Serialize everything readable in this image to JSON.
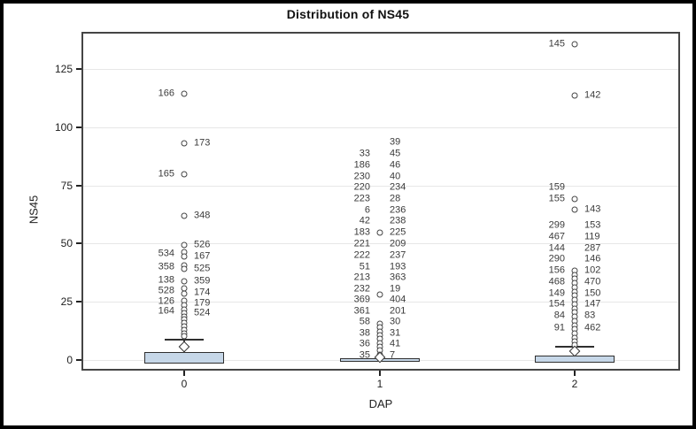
{
  "title": "Distribution of NS45",
  "x_axis": {
    "label": "DAP",
    "tick_labels": [
      "0",
      "1",
      "2"
    ]
  },
  "y_axis": {
    "label": "NS45",
    "tick_labels": [
      "0",
      "25",
      "50",
      "75",
      "100",
      "125"
    ]
  },
  "colors": {
    "outer_border": "#000000",
    "frame": "#454545",
    "grid": "#e7e7e7",
    "box_fill": "#c6d7e8",
    "box_border": "#2f2f2f",
    "marker": "#444444",
    "tick_text": "#222222",
    "label_text": "#3b3b3b"
  },
  "chart_data": {
    "type": "boxplot",
    "title": "Distribution of NS45",
    "xlabel": "DAP",
    "ylabel": "NS45",
    "ylim": [
      -4.5,
      141
    ],
    "yticks": [
      0,
      25,
      50,
      75,
      100,
      125
    ],
    "categories": [
      "0",
      "1",
      "2"
    ],
    "grid": "horizontal",
    "legend": "none",
    "groups": [
      {
        "category": "0",
        "box": {
          "q1": -1.5,
          "q3": 3.5
        },
        "whisker_top": 8.7,
        "mean": 5.7,
        "circles": [
          114.4,
          93.1,
          79.8,
          61.9,
          49.4,
          46.5,
          44.6,
          40.5,
          39.3,
          34.0,
          30.6,
          28.6,
          25.6,
          23.6,
          21.6,
          20.2,
          18.8,
          17.3,
          15.8,
          14.3,
          12.8,
          11.4,
          10.2
        ],
        "labels": [
          {
            "text": "166",
            "side": "left",
            "v": 114.4
          },
          {
            "text": "173",
            "side": "right",
            "v": 93.1
          },
          {
            "text": "165",
            "side": "left",
            "v": 79.8
          },
          {
            "text": "348",
            "side": "right",
            "v": 61.9
          },
          {
            "text": "526",
            "side": "right",
            "v": 49.4
          },
          {
            "text": "534",
            "side": "left",
            "v": 45.6
          },
          {
            "text": "167",
            "side": "right",
            "v": 44.6
          },
          {
            "text": "358",
            "side": "left",
            "v": 39.9
          },
          {
            "text": "525",
            "side": "right",
            "v": 39.3
          },
          {
            "text": "138",
            "side": "left",
            "v": 34.2
          },
          {
            "text": "359",
            "side": "right",
            "v": 33.8
          },
          {
            "text": "528",
            "side": "left",
            "v": 29.6
          },
          {
            "text": "174",
            "side": "right",
            "v": 28.9
          },
          {
            "text": "126",
            "side": "left",
            "v": 25.1
          },
          {
            "text": "179",
            "side": "right",
            "v": 24.3
          },
          {
            "text": "164",
            "side": "left",
            "v": 20.9
          },
          {
            "text": "524",
            "side": "right",
            "v": 20.1
          }
        ]
      },
      {
        "category": "1",
        "box": {
          "q1": -0.6,
          "q3": 0.6
        },
        "whisker_top": null,
        "mean": 1.3,
        "circles": [
          54.7,
          28.1,
          15.6,
          13.9,
          12.3,
          10.6,
          9.0,
          7.3,
          5.7,
          4.0,
          2.4,
          0.8
        ],
        "labels": [
          {
            "text": "39",
            "side": "right",
            "v": 93.5
          },
          {
            "text": "33",
            "side": "left",
            "v": 88.5
          },
          {
            "text": "45",
            "side": "right",
            "v": 88.5
          },
          {
            "text": "186",
            "side": "left",
            "v": 83.6
          },
          {
            "text": "46",
            "side": "right",
            "v": 83.6
          },
          {
            "text": "230",
            "side": "left",
            "v": 78.7
          },
          {
            "text": "40",
            "side": "right",
            "v": 78.7
          },
          {
            "text": "220",
            "side": "left",
            "v": 74.1
          },
          {
            "text": "234",
            "side": "right",
            "v": 74.1
          },
          {
            "text": "223",
            "side": "left",
            "v": 69.1
          },
          {
            "text": "28",
            "side": "right",
            "v": 69.1
          },
          {
            "text": "6",
            "side": "left",
            "v": 64.2
          },
          {
            "text": "236",
            "side": "right",
            "v": 64.2
          },
          {
            "text": "42",
            "side": "left",
            "v": 59.7
          },
          {
            "text": "238",
            "side": "right",
            "v": 59.7
          },
          {
            "text": "183",
            "side": "left",
            "v": 54.7
          },
          {
            "text": "225",
            "side": "right",
            "v": 54.7
          },
          {
            "text": "221",
            "side": "left",
            "v": 49.8
          },
          {
            "text": "209",
            "side": "right",
            "v": 49.8
          },
          {
            "text": "222",
            "side": "left",
            "v": 44.8
          },
          {
            "text": "237",
            "side": "right",
            "v": 44.8
          },
          {
            "text": "51",
            "side": "left",
            "v": 39.9
          },
          {
            "text": "193",
            "side": "right",
            "v": 39.9
          },
          {
            "text": "213",
            "side": "left",
            "v": 35.3
          },
          {
            "text": "363",
            "side": "right",
            "v": 35.3
          },
          {
            "text": "232",
            "side": "left",
            "v": 30.4
          },
          {
            "text": "19",
            "side": "right",
            "v": 30.4
          },
          {
            "text": "369",
            "side": "left",
            "v": 25.8
          },
          {
            "text": "404",
            "side": "right",
            "v": 25.8
          },
          {
            "text": "361",
            "side": "left",
            "v": 20.9
          },
          {
            "text": "201",
            "side": "right",
            "v": 20.9
          },
          {
            "text": "58",
            "side": "left",
            "v": 16.3
          },
          {
            "text": "30",
            "side": "right",
            "v": 16.3
          },
          {
            "text": "38",
            "side": "left",
            "v": 11.4
          },
          {
            "text": "31",
            "side": "right",
            "v": 11.4
          },
          {
            "text": "36",
            "side": "left",
            "v": 6.8
          },
          {
            "text": "41",
            "side": "right",
            "v": 6.8
          },
          {
            "text": "35",
            "side": "left",
            "v": 1.9
          },
          {
            "text": "7",
            "side": "right",
            "v": 1.9
          }
        ]
      },
      {
        "category": "2",
        "box": {
          "q1": -1.1,
          "q3": 1.9
        },
        "whisker_top": 5.7,
        "mean": 3.8,
        "circles": [
          135.6,
          113.6,
          69.1,
          64.6,
          38.4,
          36.6,
          34.8,
          33.0,
          31.2,
          29.4,
          27.6,
          25.8,
          24.0,
          22.2,
          20.4,
          18.6,
          16.8,
          15.0,
          13.2,
          11.4,
          9.6,
          7.8,
          6.3
        ],
        "labels": [
          {
            "text": "145",
            "side": "left",
            "v": 135.6
          },
          {
            "text": "142",
            "side": "right",
            "v": 113.6
          },
          {
            "text": "159",
            "side": "left",
            "v": 74.1
          },
          {
            "text": "155",
            "side": "left",
            "v": 69.1
          },
          {
            "text": "143",
            "side": "right",
            "v": 64.6
          },
          {
            "text": "299",
            "side": "left",
            "v": 57.8
          },
          {
            "text": "153",
            "side": "right",
            "v": 57.8
          },
          {
            "text": "467",
            "side": "left",
            "v": 52.8
          },
          {
            "text": "119",
            "side": "right",
            "v": 52.8
          },
          {
            "text": "144",
            "side": "left",
            "v": 47.9
          },
          {
            "text": "287",
            "side": "right",
            "v": 47.9
          },
          {
            "text": "290",
            "side": "left",
            "v": 43.3
          },
          {
            "text": "146",
            "side": "right",
            "v": 43.3
          },
          {
            "text": "156",
            "side": "left",
            "v": 38.4
          },
          {
            "text": "102",
            "side": "right",
            "v": 38.4
          },
          {
            "text": "468",
            "side": "left",
            "v": 33.4
          },
          {
            "text": "470",
            "side": "right",
            "v": 33.4
          },
          {
            "text": "149",
            "side": "left",
            "v": 28.5
          },
          {
            "text": "150",
            "side": "right",
            "v": 28.5
          },
          {
            "text": "154",
            "side": "left",
            "v": 23.9
          },
          {
            "text": "147",
            "side": "right",
            "v": 23.9
          },
          {
            "text": "84",
            "side": "left",
            "v": 19.0
          },
          {
            "text": "83",
            "side": "right",
            "v": 19.0
          },
          {
            "text": "91",
            "side": "left",
            "v": 13.7
          },
          {
            "text": "462",
            "side": "right",
            "v": 13.7
          }
        ]
      }
    ]
  }
}
